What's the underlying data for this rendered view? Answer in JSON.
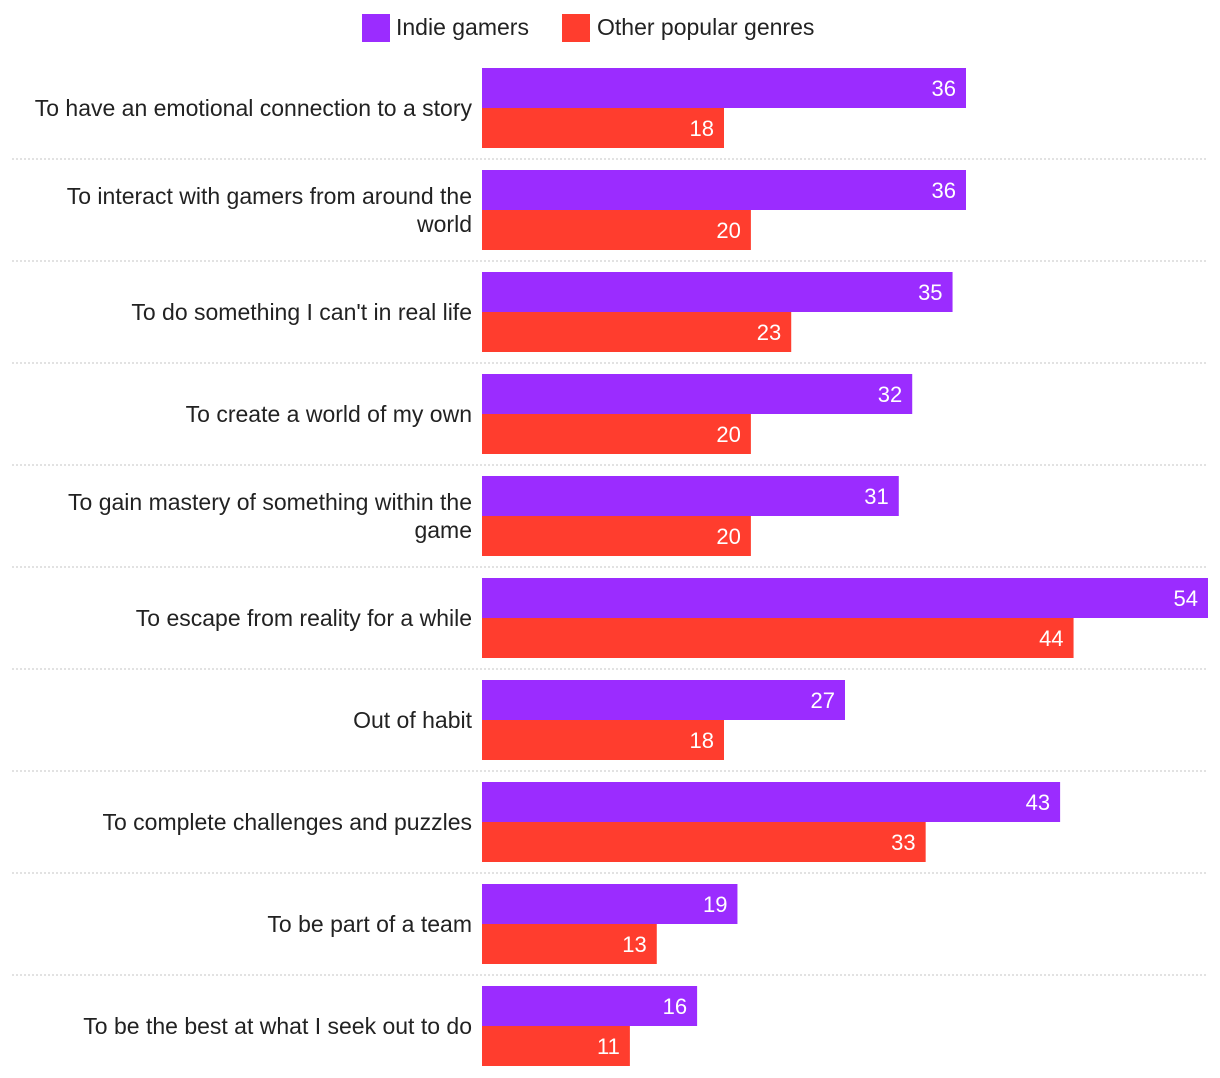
{
  "chart_data": {
    "type": "bar",
    "orientation": "horizontal",
    "title": "",
    "xlabel": "",
    "ylabel": "",
    "xlim": [
      0,
      54
    ],
    "grid": false,
    "legend_position": "top-center",
    "categories": [
      "To have an emotional connection to a story",
      "To interact with gamers from around the world",
      "To do something I can't in real life",
      "To create a world of my own",
      "To gain mastery of something within the game",
      "To escape from reality for a while",
      "Out of habit",
      "To complete challenges and puzzles",
      "To be part of a team",
      "To be the best at what I seek out to do"
    ],
    "series": [
      {
        "name": "Indie gamers",
        "color": "#9b2cff",
        "values": [
          36,
          36,
          35,
          32,
          31,
          54,
          27,
          43,
          19,
          16
        ]
      },
      {
        "name": "Other popular genres",
        "color": "#ff3d2e",
        "values": [
          18,
          20,
          23,
          20,
          20,
          44,
          18,
          33,
          13,
          11
        ]
      }
    ]
  }
}
